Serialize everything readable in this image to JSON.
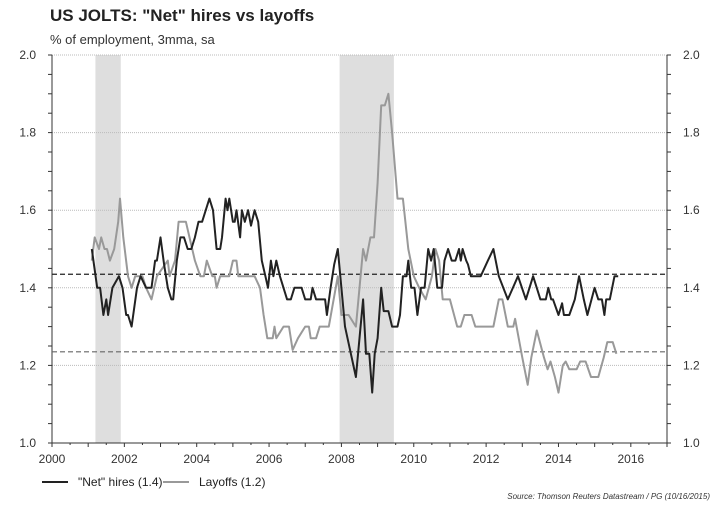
{
  "chart_data": {
    "type": "line",
    "title": "US JOLTS: \"Net\" hires vs layoffs",
    "subtitle": "% of employment, 3mma, sa",
    "xlim": [
      2000,
      2017
    ],
    "ylim": [
      1.0,
      2.0
    ],
    "x_ticks": [
      "2000",
      "2002",
      "2004",
      "2006",
      "2008",
      "2010",
      "2012",
      "2014",
      "2016"
    ],
    "y_ticks": [
      "1.0",
      "1.2",
      "1.4",
      "1.6",
      "1.8",
      "2.0"
    ],
    "grid": "horizontal dotted",
    "recessions": [
      [
        2001.2,
        2001.9
      ],
      [
        2007.95,
        2009.45
      ]
    ],
    "averages": [
      {
        "series": "\"Net\" hires",
        "value": 1.435
      },
      {
        "series": "Layoffs",
        "value": 1.235
      }
    ],
    "series": [
      {
        "name": "\"Net\" hires (1.4)",
        "color": "#222222",
        "points": [
          [
            2001.1,
            1.5
          ],
          [
            2001.25,
            1.4
          ],
          [
            2001.33,
            1.4
          ],
          [
            2001.42,
            1.33
          ],
          [
            2001.5,
            1.37
          ],
          [
            2001.55,
            1.33
          ],
          [
            2001.67,
            1.4
          ],
          [
            2001.85,
            1.43
          ],
          [
            2001.95,
            1.4
          ],
          [
            2002.05,
            1.33
          ],
          [
            2002.1,
            1.33
          ],
          [
            2002.2,
            1.3
          ],
          [
            2002.35,
            1.4
          ],
          [
            2002.45,
            1.43
          ],
          [
            2002.6,
            1.4
          ],
          [
            2002.75,
            1.4
          ],
          [
            2002.85,
            1.47
          ],
          [
            2002.9,
            1.47
          ],
          [
            2003.0,
            1.53
          ],
          [
            2003.1,
            1.46
          ],
          [
            2003.2,
            1.4
          ],
          [
            2003.3,
            1.37
          ],
          [
            2003.35,
            1.37
          ],
          [
            2003.45,
            1.47
          ],
          [
            2003.55,
            1.53
          ],
          [
            2003.65,
            1.53
          ],
          [
            2003.75,
            1.5
          ],
          [
            2003.85,
            1.5
          ],
          [
            2003.95,
            1.53
          ],
          [
            2004.05,
            1.57
          ],
          [
            2004.15,
            1.57
          ],
          [
            2004.35,
            1.63
          ],
          [
            2004.45,
            1.6
          ],
          [
            2004.55,
            1.5
          ],
          [
            2004.65,
            1.5
          ],
          [
            2004.7,
            1.53
          ],
          [
            2004.8,
            1.63
          ],
          [
            2004.85,
            1.6
          ],
          [
            2004.9,
            1.63
          ],
          [
            2005.0,
            1.57
          ],
          [
            2005.05,
            1.57
          ],
          [
            2005.1,
            1.6
          ],
          [
            2005.2,
            1.53
          ],
          [
            2005.25,
            1.6
          ],
          [
            2005.33,
            1.57
          ],
          [
            2005.42,
            1.6
          ],
          [
            2005.5,
            1.56
          ],
          [
            2005.6,
            1.6
          ],
          [
            2005.7,
            1.57
          ],
          [
            2005.8,
            1.47
          ],
          [
            2005.9,
            1.43
          ],
          [
            2005.97,
            1.4
          ],
          [
            2006.05,
            1.47
          ],
          [
            2006.12,
            1.43
          ],
          [
            2006.2,
            1.47
          ],
          [
            2006.3,
            1.43
          ],
          [
            2006.4,
            1.4
          ],
          [
            2006.5,
            1.37
          ],
          [
            2006.6,
            1.37
          ],
          [
            2006.7,
            1.4
          ],
          [
            2006.9,
            1.4
          ],
          [
            2007.0,
            1.37
          ],
          [
            2007.15,
            1.37
          ],
          [
            2007.2,
            1.4
          ],
          [
            2007.3,
            1.37
          ],
          [
            2007.55,
            1.37
          ],
          [
            2007.6,
            1.33
          ],
          [
            2007.7,
            1.4
          ],
          [
            2007.8,
            1.46
          ],
          [
            2007.9,
            1.5
          ],
          [
            2008.0,
            1.4
          ],
          [
            2008.1,
            1.3
          ],
          [
            2008.4,
            1.17
          ],
          [
            2008.6,
            1.37
          ],
          [
            2008.68,
            1.23
          ],
          [
            2008.77,
            1.23
          ],
          [
            2008.85,
            1.13
          ],
          [
            2008.92,
            1.23
          ],
          [
            2009.0,
            1.27
          ],
          [
            2009.1,
            1.4
          ],
          [
            2009.17,
            1.34
          ],
          [
            2009.3,
            1.34
          ],
          [
            2009.4,
            1.3
          ],
          [
            2009.55,
            1.3
          ],
          [
            2009.62,
            1.33
          ],
          [
            2009.7,
            1.43
          ],
          [
            2009.8,
            1.43
          ],
          [
            2009.85,
            1.47
          ],
          [
            2009.93,
            1.4
          ],
          [
            2010.02,
            1.4
          ],
          [
            2010.1,
            1.33
          ],
          [
            2010.2,
            1.4
          ],
          [
            2010.3,
            1.4
          ],
          [
            2010.4,
            1.5
          ],
          [
            2010.48,
            1.47
          ],
          [
            2010.55,
            1.5
          ],
          [
            2010.65,
            1.4
          ],
          [
            2010.78,
            1.4
          ],
          [
            2010.85,
            1.47
          ],
          [
            2010.95,
            1.5
          ],
          [
            2011.05,
            1.47
          ],
          [
            2011.15,
            1.47
          ],
          [
            2011.25,
            1.5
          ],
          [
            2011.3,
            1.47
          ],
          [
            2011.35,
            1.5
          ],
          [
            2011.45,
            1.47
          ],
          [
            2011.5,
            1.46
          ],
          [
            2011.58,
            1.43
          ],
          [
            2011.85,
            1.43
          ],
          [
            2012.05,
            1.47
          ],
          [
            2012.2,
            1.5
          ],
          [
            2012.35,
            1.43
          ],
          [
            2012.6,
            1.37
          ],
          [
            2012.88,
            1.43
          ],
          [
            2013.1,
            1.37
          ],
          [
            2013.3,
            1.43
          ],
          [
            2013.5,
            1.37
          ],
          [
            2013.65,
            1.37
          ],
          [
            2013.72,
            1.4
          ],
          [
            2013.8,
            1.37
          ],
          [
            2013.85,
            1.37
          ],
          [
            2014.0,
            1.33
          ],
          [
            2014.1,
            1.36
          ],
          [
            2014.15,
            1.33
          ],
          [
            2014.3,
            1.33
          ],
          [
            2014.45,
            1.37
          ],
          [
            2014.57,
            1.43
          ],
          [
            2014.7,
            1.37
          ],
          [
            2014.8,
            1.33
          ],
          [
            2015.0,
            1.4
          ],
          [
            2015.1,
            1.37
          ],
          [
            2015.2,
            1.37
          ],
          [
            2015.27,
            1.33
          ],
          [
            2015.32,
            1.37
          ],
          [
            2015.42,
            1.37
          ],
          [
            2015.55,
            1.43
          ],
          [
            2015.65,
            1.43
          ]
        ]
      },
      {
        "name": "Layoffs (1.2)",
        "color": "#999999",
        "points": [
          [
            2001.1,
            1.47
          ],
          [
            2001.18,
            1.53
          ],
          [
            2001.3,
            1.5
          ],
          [
            2001.36,
            1.53
          ],
          [
            2001.45,
            1.5
          ],
          [
            2001.52,
            1.5
          ],
          [
            2001.6,
            1.47
          ],
          [
            2001.72,
            1.5
          ],
          [
            2001.83,
            1.57
          ],
          [
            2001.88,
            1.63
          ],
          [
            2001.97,
            1.53
          ],
          [
            2002.1,
            1.43
          ],
          [
            2002.2,
            1.4
          ],
          [
            2002.3,
            1.43
          ],
          [
            2002.5,
            1.43
          ],
          [
            2002.6,
            1.4
          ],
          [
            2002.75,
            1.37
          ],
          [
            2002.9,
            1.43
          ],
          [
            2003.2,
            1.47
          ],
          [
            2003.25,
            1.43
          ],
          [
            2003.4,
            1.47
          ],
          [
            2003.5,
            1.57
          ],
          [
            2003.7,
            1.57
          ],
          [
            2003.8,
            1.53
          ],
          [
            2003.95,
            1.47
          ],
          [
            2004.1,
            1.43
          ],
          [
            2004.2,
            1.43
          ],
          [
            2004.28,
            1.47
          ],
          [
            2004.43,
            1.43
          ],
          [
            2004.5,
            1.43
          ],
          [
            2004.55,
            1.4
          ],
          [
            2004.65,
            1.43
          ],
          [
            2004.9,
            1.43
          ],
          [
            2005.0,
            1.47
          ],
          [
            2005.1,
            1.47
          ],
          [
            2005.15,
            1.43
          ],
          [
            2005.6,
            1.43
          ],
          [
            2005.75,
            1.4
          ],
          [
            2005.85,
            1.33
          ],
          [
            2005.95,
            1.27
          ],
          [
            2006.1,
            1.27
          ],
          [
            2006.15,
            1.3
          ],
          [
            2006.2,
            1.27
          ],
          [
            2006.4,
            1.3
          ],
          [
            2006.55,
            1.3
          ],
          [
            2006.65,
            1.24
          ],
          [
            2006.8,
            1.27
          ],
          [
            2007.0,
            1.3
          ],
          [
            2007.1,
            1.3
          ],
          [
            2007.15,
            1.27
          ],
          [
            2007.3,
            1.27
          ],
          [
            2007.4,
            1.3
          ],
          [
            2007.65,
            1.3
          ],
          [
            2007.9,
            1.43
          ],
          [
            2008.0,
            1.33
          ],
          [
            2008.2,
            1.33
          ],
          [
            2008.4,
            1.3
          ],
          [
            2008.5,
            1.4
          ],
          [
            2008.6,
            1.5
          ],
          [
            2008.68,
            1.47
          ],
          [
            2008.8,
            1.53
          ],
          [
            2008.9,
            1.53
          ],
          [
            2009.0,
            1.67
          ],
          [
            2009.1,
            1.87
          ],
          [
            2009.2,
            1.87
          ],
          [
            2009.3,
            1.9
          ],
          [
            2009.4,
            1.8
          ],
          [
            2009.55,
            1.63
          ],
          [
            2009.7,
            1.63
          ],
          [
            2009.85,
            1.5
          ],
          [
            2010.0,
            1.43
          ],
          [
            2010.15,
            1.4
          ],
          [
            2010.33,
            1.37
          ],
          [
            2010.5,
            1.43
          ],
          [
            2010.6,
            1.5
          ],
          [
            2010.7,
            1.47
          ],
          [
            2010.8,
            1.37
          ],
          [
            2011.0,
            1.37
          ],
          [
            2011.2,
            1.3
          ],
          [
            2011.3,
            1.3
          ],
          [
            2011.4,
            1.33
          ],
          [
            2011.6,
            1.33
          ],
          [
            2011.7,
            1.3
          ],
          [
            2012.2,
            1.3
          ],
          [
            2012.35,
            1.37
          ],
          [
            2012.45,
            1.37
          ],
          [
            2012.6,
            1.3
          ],
          [
            2012.75,
            1.3
          ],
          [
            2012.8,
            1.32
          ],
          [
            2013.0,
            1.22
          ],
          [
            2013.15,
            1.15
          ],
          [
            2013.25,
            1.22
          ],
          [
            2013.4,
            1.29
          ],
          [
            2013.6,
            1.22
          ],
          [
            2013.7,
            1.19
          ],
          [
            2013.78,
            1.21
          ],
          [
            2013.9,
            1.17
          ],
          [
            2014.0,
            1.13
          ],
          [
            2014.12,
            1.2
          ],
          [
            2014.2,
            1.21
          ],
          [
            2014.3,
            1.19
          ],
          [
            2014.5,
            1.19
          ],
          [
            2014.6,
            1.21
          ],
          [
            2014.75,
            1.21
          ],
          [
            2014.9,
            1.17
          ],
          [
            2015.1,
            1.17
          ],
          [
            2015.25,
            1.22
          ],
          [
            2015.35,
            1.26
          ],
          [
            2015.5,
            1.26
          ],
          [
            2015.6,
            1.23
          ]
        ]
      }
    ],
    "legend": [
      "\"Net\" hires (1.4)",
      "Layoffs (1.2)"
    ],
    "legend_position": "bottom-left",
    "source": "Source: Thomson Reuters Datastream / PG (10/16/2015)"
  }
}
